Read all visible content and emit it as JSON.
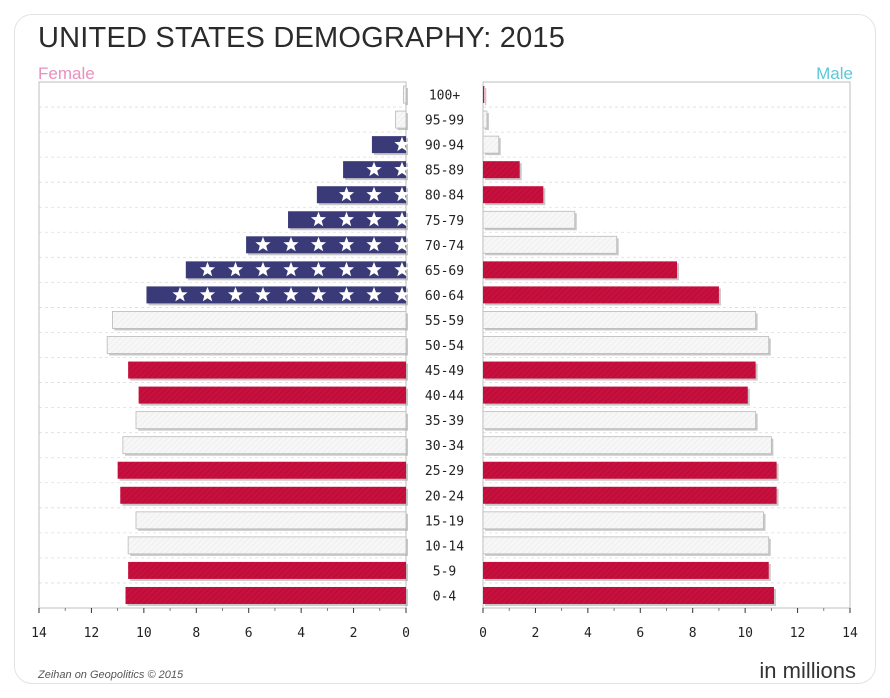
{
  "chart_data": {
    "type": "bar",
    "subtype": "population-pyramid",
    "title": "UNITED STATES DEMOGRAPHY: 2015",
    "categories": [
      "100+",
      "95-99",
      "90-94",
      "85-89",
      "80-84",
      "75-79",
      "70-74",
      "65-69",
      "60-64",
      "55-59",
      "50-54",
      "45-49",
      "40-44",
      "35-39",
      "30-34",
      "25-29",
      "20-24",
      "15-19",
      "10-14",
      "5-9",
      "0-4"
    ],
    "series": [
      {
        "name": "Female",
        "values": [
          0.1,
          0.4,
          1.3,
          2.4,
          3.4,
          4.5,
          6.1,
          8.4,
          9.9,
          11.2,
          11.4,
          10.6,
          10.2,
          10.3,
          10.8,
          11.0,
          10.9,
          10.3,
          10.6,
          10.6,
          10.7
        ]
      },
      {
        "name": "Male",
        "values": [
          0.05,
          0.15,
          0.6,
          1.4,
          2.3,
          3.5,
          5.1,
          7.4,
          9.0,
          10.4,
          10.9,
          10.4,
          10.1,
          10.4,
          11.0,
          11.2,
          11.2,
          10.7,
          10.9,
          10.9,
          11.1
        ]
      }
    ],
    "xlim": [
      0,
      14
    ],
    "xticks": [
      "0",
      "2",
      "4",
      "6",
      "8",
      "10",
      "12",
      "14"
    ],
    "xlabel": "in millions",
    "legend": {
      "female": "Female",
      "male": "Male"
    },
    "grid": true,
    "styles_by_row": [
      "white",
      "white",
      "navy",
      "navy",
      "navy",
      "navy",
      "navy",
      "navy",
      "navy",
      "white",
      "white",
      "red",
      "red",
      "white",
      "white",
      "red",
      "red",
      "white",
      "white",
      "red",
      "red"
    ],
    "male_styles_by_row": [
      "red",
      "white",
      "white",
      "red",
      "red",
      "white",
      "white",
      "red",
      "red",
      "white",
      "white",
      "red",
      "red",
      "white",
      "white",
      "red",
      "red",
      "white",
      "white",
      "red",
      "red"
    ]
  },
  "colors": {
    "red": "#c8103e",
    "navy": "#3a3a78",
    "white": "#f6f6f6",
    "female_legend": "#e98fbf",
    "male_legend": "#5cc8d8"
  },
  "credit": "Zeihan on Geopolitics © 2015"
}
